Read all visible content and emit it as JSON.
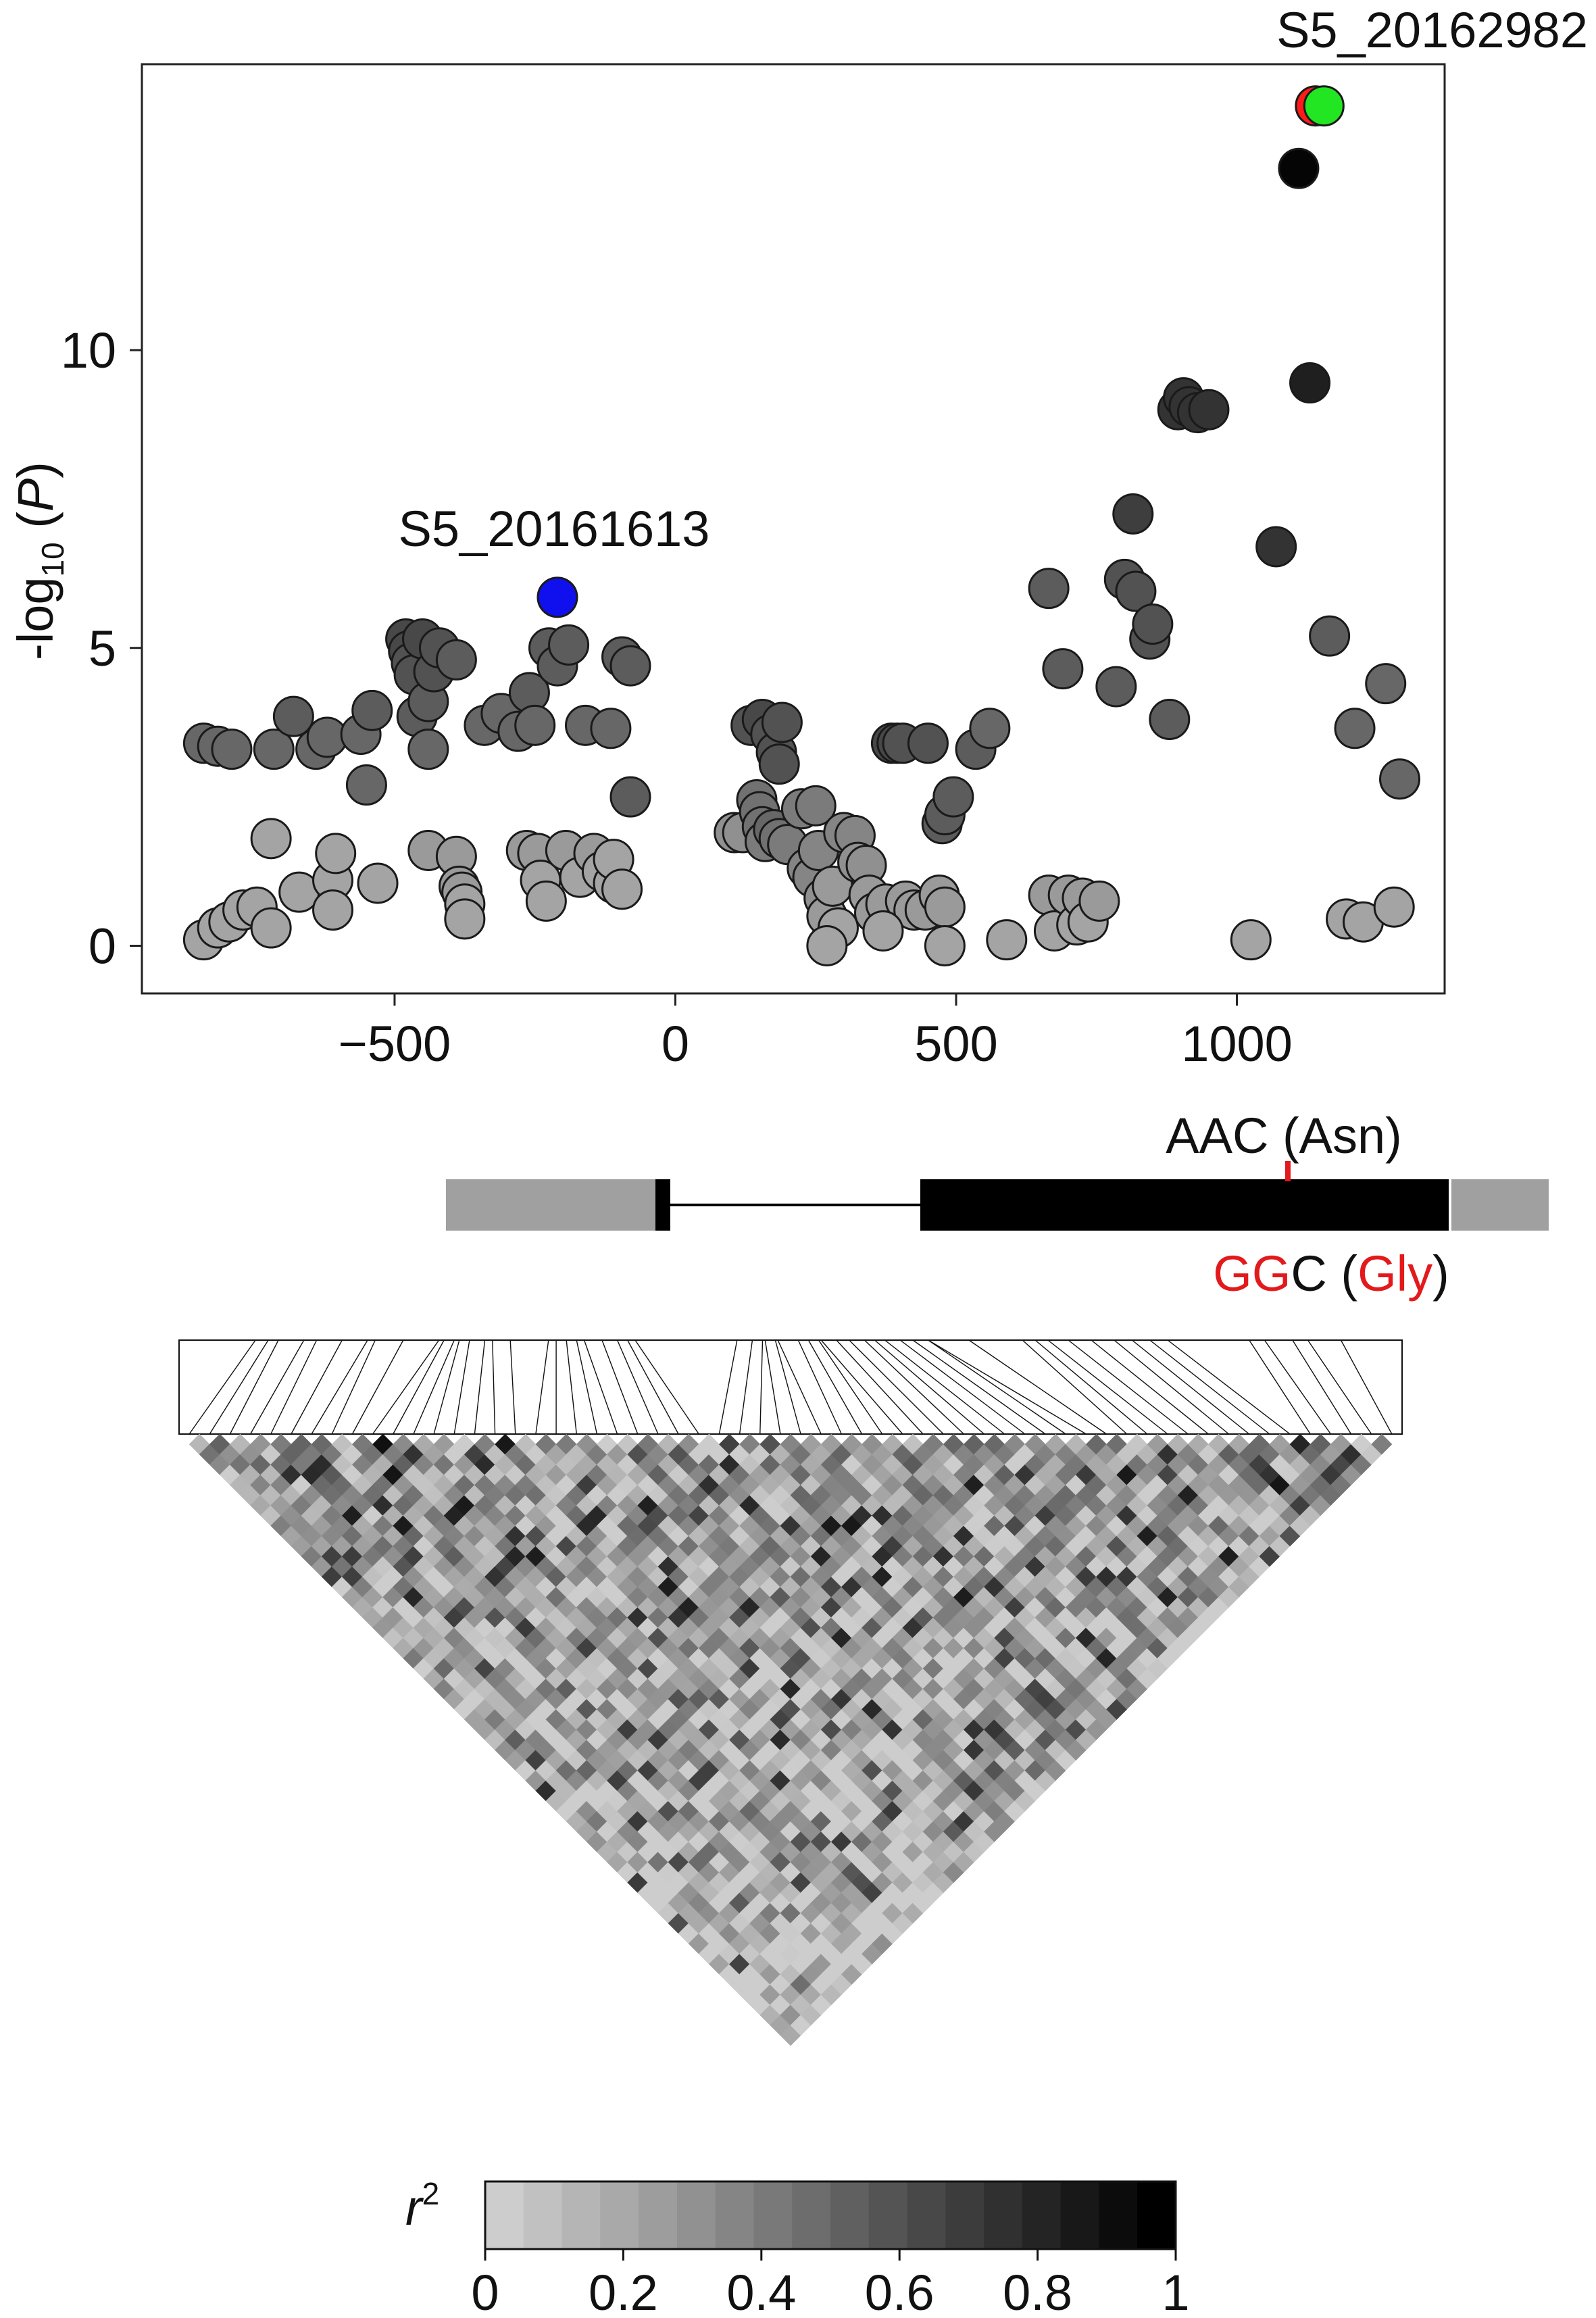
{
  "chart_data": [
    {
      "type": "scatter",
      "ylabel": "-log10 (P)",
      "xlim": [
        -950,
        1370
      ],
      "ylim": [
        -0.8,
        14.8
      ],
      "xticks": [
        {
          "v": -500,
          "label": "−500"
        },
        {
          "v": 0,
          "label": "0"
        },
        {
          "v": 500,
          "label": "500"
        },
        {
          "v": 1000,
          "label": "1000"
        }
      ],
      "yticks": [
        {
          "v": 0,
          "label": "0"
        },
        {
          "v": 5,
          "label": "5"
        },
        {
          "v": 10,
          "label": "10"
        }
      ],
      "annotations": [
        "S5_20162982",
        "S5_20161613"
      ],
      "highlight_colors": {
        "lead": "#22e622",
        "lead_red": "#ff1a1a",
        "secondary": "#1010ee",
        "top_black": "#050505"
      },
      "points": [
        {
          "x": -840,
          "y": 3.4,
          "r2": 0.5
        },
        {
          "x": -815,
          "y": 3.35,
          "r2": 0.5
        },
        {
          "x": -790,
          "y": 3.3,
          "r2": 0.5
        },
        {
          "x": -715,
          "y": 3.3,
          "r2": 0.5
        },
        {
          "x": -680,
          "y": 3.85,
          "r2": 0.55
        },
        {
          "x": -640,
          "y": 3.3,
          "r2": 0.5
        },
        {
          "x": -620,
          "y": 3.5,
          "r2": 0.5
        },
        {
          "x": -560,
          "y": 3.55,
          "r2": 0.5
        },
        {
          "x": -540,
          "y": 3.95,
          "r2": 0.55
        },
        {
          "x": -550,
          "y": 2.7,
          "r2": 0.5
        },
        {
          "x": -480,
          "y": 5.15,
          "r2": 0.65
        },
        {
          "x": -475,
          "y": 4.95,
          "r2": 0.65
        },
        {
          "x": -470,
          "y": 4.75,
          "r2": 0.6
        },
        {
          "x": -465,
          "y": 4.55,
          "r2": 0.6
        },
        {
          "x": -460,
          "y": 3.85,
          "r2": 0.55
        },
        {
          "x": -450,
          "y": 5.15,
          "r2": 0.65
        },
        {
          "x": -440,
          "y": 4.1,
          "r2": 0.55
        },
        {
          "x": -430,
          "y": 4.6,
          "r2": 0.6
        },
        {
          "x": -420,
          "y": 5.0,
          "r2": 0.6
        },
        {
          "x": -440,
          "y": 3.3,
          "r2": 0.5
        },
        {
          "x": -390,
          "y": 4.8,
          "r2": 0.55
        },
        {
          "x": -340,
          "y": 3.7,
          "r2": 0.5
        },
        {
          "x": -310,
          "y": 3.9,
          "r2": 0.5
        },
        {
          "x": -280,
          "y": 3.6,
          "r2": 0.5
        },
        {
          "x": -260,
          "y": 4.25,
          "r2": 0.55
        },
        {
          "x": -250,
          "y": 3.7,
          "r2": 0.5
        },
        {
          "x": -225,
          "y": 5.0,
          "r2": 0.55
        },
        {
          "x": -210,
          "y": 4.7,
          "r2": 0.55
        },
        {
          "x": -190,
          "y": 5.05,
          "r2": 0.55
        },
        {
          "x": -160,
          "y": 3.7,
          "r2": 0.5
        },
        {
          "x": -115,
          "y": 3.65,
          "r2": 0.5
        },
        {
          "x": -95,
          "y": 4.85,
          "r2": 0.55
        },
        {
          "x": -80,
          "y": 4.7,
          "r2": 0.55
        },
        {
          "x": -80,
          "y": 2.5,
          "r2": 0.55
        },
        {
          "x": -840,
          "y": 0.1,
          "r2": 0.2
        },
        {
          "x": -815,
          "y": 0.3,
          "r2": 0.2
        },
        {
          "x": -795,
          "y": 0.4,
          "r2": 0.2
        },
        {
          "x": -770,
          "y": 0.6,
          "r2": 0.2
        },
        {
          "x": -745,
          "y": 0.65,
          "r2": 0.2
        },
        {
          "x": -720,
          "y": 0.3,
          "r2": 0.2
        },
        {
          "x": -720,
          "y": 1.8,
          "r2": 0.2
        },
        {
          "x": -670,
          "y": 0.9,
          "r2": 0.2
        },
        {
          "x": -610,
          "y": 1.1,
          "r2": 0.2
        },
        {
          "x": -605,
          "y": 1.55,
          "r2": 0.2
        },
        {
          "x": -610,
          "y": 0.6,
          "r2": 0.2
        },
        {
          "x": -530,
          "y": 1.05,
          "r2": 0.2
        },
        {
          "x": -440,
          "y": 1.6,
          "r2": 0.25
        },
        {
          "x": -390,
          "y": 1.5,
          "r2": 0.25
        },
        {
          "x": -385,
          "y": 1.0,
          "r2": 0.25
        },
        {
          "x": -380,
          "y": 0.9,
          "r2": 0.25
        },
        {
          "x": -375,
          "y": 0.7,
          "r2": 0.2
        },
        {
          "x": -375,
          "y": 0.45,
          "r2": 0.2
        },
        {
          "x": -265,
          "y": 1.6,
          "r2": 0.25
        },
        {
          "x": -245,
          "y": 1.55,
          "r2": 0.25
        },
        {
          "x": -240,
          "y": 1.1,
          "r2": 0.2
        },
        {
          "x": -230,
          "y": 0.75,
          "r2": 0.2
        },
        {
          "x": -195,
          "y": 1.6,
          "r2": 0.25
        },
        {
          "x": -170,
          "y": 1.15,
          "r2": 0.2
        },
        {
          "x": -145,
          "y": 1.55,
          "r2": 0.25
        },
        {
          "x": -130,
          "y": 1.25,
          "r2": 0.2
        },
        {
          "x": -110,
          "y": 1.05,
          "r2": 0.2
        },
        {
          "x": -110,
          "y": 1.45,
          "r2": 0.2
        },
        {
          "x": -95,
          "y": 0.95,
          "r2": 0.2
        },
        {
          "x": 105,
          "y": 1.9,
          "r2": 0.3
        },
        {
          "x": 120,
          "y": 1.9,
          "r2": 0.3
        },
        {
          "x": 135,
          "y": 3.7,
          "r2": 0.6
        },
        {
          "x": 155,
          "y": 3.8,
          "r2": 0.65
        },
        {
          "x": 145,
          "y": 2.45,
          "r2": 0.45
        },
        {
          "x": 150,
          "y": 2.25,
          "r2": 0.45
        },
        {
          "x": 155,
          "y": 2.0,
          "r2": 0.45
        },
        {
          "x": 160,
          "y": 1.75,
          "r2": 0.4
        },
        {
          "x": 170,
          "y": 3.55,
          "r2": 0.6
        },
        {
          "x": 180,
          "y": 3.25,
          "r2": 0.6
        },
        {
          "x": 185,
          "y": 3.05,
          "r2": 0.6
        },
        {
          "x": 190,
          "y": 3.75,
          "r2": 0.6
        },
        {
          "x": 175,
          "y": 1.95,
          "r2": 0.5
        },
        {
          "x": 185,
          "y": 1.8,
          "r2": 0.45
        },
        {
          "x": 200,
          "y": 1.7,
          "r2": 0.4
        },
        {
          "x": 225,
          "y": 2.3,
          "r2": 0.4
        },
        {
          "x": 235,
          "y": 1.3,
          "r2": 0.35
        },
        {
          "x": 245,
          "y": 1.15,
          "r2": 0.35
        },
        {
          "x": 250,
          "y": 2.35,
          "r2": 0.4
        },
        {
          "x": 255,
          "y": 1.6,
          "r2": 0.35
        },
        {
          "x": 265,
          "y": 0.8,
          "r2": 0.3
        },
        {
          "x": 270,
          "y": 0.5,
          "r2": 0.25
        },
        {
          "x": 280,
          "y": 1.0,
          "r2": 0.25
        },
        {
          "x": 290,
          "y": 0.3,
          "r2": 0.2
        },
        {
          "x": 300,
          "y": 1.9,
          "r2": 0.35
        },
        {
          "x": 320,
          "y": 1.85,
          "r2": 0.35
        },
        {
          "x": 325,
          "y": 1.4,
          "r2": 0.3
        },
        {
          "x": 340,
          "y": 1.35,
          "r2": 0.3
        },
        {
          "x": 345,
          "y": 0.85,
          "r2": 0.25
        },
        {
          "x": 355,
          "y": 0.55,
          "r2": 0.25
        },
        {
          "x": 375,
          "y": 0.7,
          "r2": 0.25
        },
        {
          "x": 410,
          "y": 0.75,
          "r2": 0.25
        },
        {
          "x": 425,
          "y": 0.6,
          "r2": 0.25
        },
        {
          "x": 445,
          "y": 0.6,
          "r2": 0.25
        },
        {
          "x": 470,
          "y": 0.85,
          "r2": 0.25
        },
        {
          "x": 480,
          "y": 0.65,
          "r2": 0.25
        },
        {
          "x": 480,
          "y": 0.0,
          "r2": 0.2
        },
        {
          "x": 270,
          "y": 0.0,
          "r2": 0.2
        },
        {
          "x": 370,
          "y": 0.25,
          "r2": 0.2
        },
        {
          "x": 385,
          "y": 3.4,
          "r2": 0.65
        },
        {
          "x": 395,
          "y": 3.4,
          "r2": 0.65
        },
        {
          "x": 405,
          "y": 3.4,
          "r2": 0.6
        },
        {
          "x": 450,
          "y": 3.4,
          "r2": 0.6
        },
        {
          "x": 475,
          "y": 2.05,
          "r2": 0.55
        },
        {
          "x": 480,
          "y": 2.2,
          "r2": 0.55
        },
        {
          "x": 495,
          "y": 2.5,
          "r2": 0.55
        },
        {
          "x": 535,
          "y": 3.3,
          "r2": 0.55
        },
        {
          "x": 560,
          "y": 3.65,
          "r2": 0.5
        },
        {
          "x": 590,
          "y": 0.1,
          "r2": 0.2
        },
        {
          "x": 665,
          "y": 6.0,
          "r2": 0.55
        },
        {
          "x": 690,
          "y": 4.65,
          "r2": 0.55
        },
        {
          "x": 665,
          "y": 0.85,
          "r2": 0.25
        },
        {
          "x": 675,
          "y": 0.25,
          "r2": 0.2
        },
        {
          "x": 700,
          "y": 0.85,
          "r2": 0.25
        },
        {
          "x": 715,
          "y": 0.35,
          "r2": 0.2
        },
        {
          "x": 725,
          "y": 0.8,
          "r2": 0.25
        },
        {
          "x": 735,
          "y": 0.4,
          "r2": 0.2
        },
        {
          "x": 755,
          "y": 0.75,
          "r2": 0.25
        },
        {
          "x": 785,
          "y": 4.35,
          "r2": 0.55
        },
        {
          "x": 800,
          "y": 6.15,
          "r2": 0.6
        },
        {
          "x": 815,
          "y": 7.25,
          "r2": 0.7
        },
        {
          "x": 820,
          "y": 5.95,
          "r2": 0.6
        },
        {
          "x": 845,
          "y": 5.15,
          "r2": 0.6
        },
        {
          "x": 850,
          "y": 5.4,
          "r2": 0.6
        },
        {
          "x": 880,
          "y": 3.8,
          "r2": 0.55
        },
        {
          "x": 895,
          "y": 9.0,
          "r2": 0.75
        },
        {
          "x": 905,
          "y": 9.2,
          "r2": 0.75
        },
        {
          "x": 915,
          "y": 9.05,
          "r2": 0.75
        },
        {
          "x": 930,
          "y": 8.95,
          "r2": 0.75
        },
        {
          "x": 950,
          "y": 9.0,
          "r2": 0.75
        },
        {
          "x": 1025,
          "y": 0.1,
          "r2": 0.2
        },
        {
          "x": 1070,
          "y": 6.7,
          "r2": 0.75
        },
        {
          "x": 1130,
          "y": 9.45,
          "r2": 0.85
        },
        {
          "x": 1165,
          "y": 5.2,
          "r2": 0.55
        },
        {
          "x": 1195,
          "y": 0.45,
          "r2": 0.2
        },
        {
          "x": 1210,
          "y": 3.65,
          "r2": 0.5
        },
        {
          "x": 1225,
          "y": 0.4,
          "r2": 0.2
        },
        {
          "x": 1265,
          "y": 4.4,
          "r2": 0.5
        },
        {
          "x": 1280,
          "y": 0.65,
          "r2": 0.2
        },
        {
          "x": 1290,
          "y": 2.8,
          "r2": 0.5
        }
      ],
      "special_points": [
        {
          "x": 1110,
          "y": 13.05,
          "color": "#050505"
        },
        {
          "x": 1140,
          "y": 14.1,
          "color": "#ff1a1a"
        },
        {
          "x": 1155,
          "y": 14.1,
          "color": "#22e622"
        },
        {
          "x": -210,
          "y": 5.85,
          "color": "#1010ee"
        }
      ]
    }
  ],
  "gene": {
    "ref_codon": "AAC (Asn)",
    "alt_codon_red": "GG",
    "alt_codon_black": "C (",
    "alt_aa_red": "Gly",
    "alt_close": ")"
  },
  "colorbar": {
    "label": "r",
    "label_sup": "2",
    "ticks": [
      "0",
      "0.2",
      "0.4",
      "0.6",
      "0.8",
      "1"
    ]
  }
}
